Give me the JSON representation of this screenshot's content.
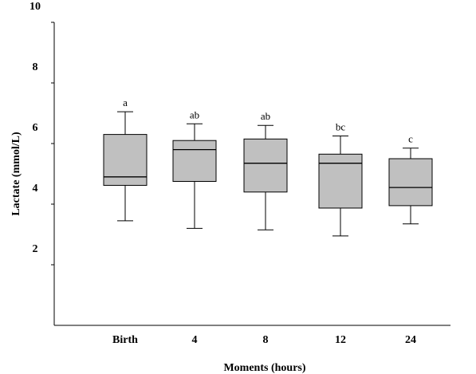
{
  "chart_data": {
    "type": "box",
    "xlabel": "Moments (hours)",
    "ylabel": "Lactate (mmol/L)",
    "ylim": [
      0,
      10
    ],
    "yticks": [
      {
        "value": 2,
        "label": "2"
      },
      {
        "value": 4,
        "label": "4"
      },
      {
        "value": 6,
        "label": "6"
      },
      {
        "value": 8,
        "label": "8"
      },
      {
        "value": 10,
        "label": "10"
      }
    ],
    "categories": [
      "Birth",
      "4",
      "8",
      "12",
      "24"
    ],
    "series": [
      {
        "category": "Birth",
        "whisker_low": 3.45,
        "q1": 4.62,
        "median": 4.9,
        "q3": 6.3,
        "whisker_high": 7.05,
        "label": "a"
      },
      {
        "category": "4",
        "whisker_low": 3.2,
        "q1": 4.75,
        "median": 5.8,
        "q3": 6.1,
        "whisker_high": 6.65,
        "label": "ab"
      },
      {
        "category": "8",
        "whisker_low": 3.15,
        "q1": 4.4,
        "median": 5.35,
        "q3": 6.15,
        "whisker_high": 6.6,
        "label": "ab"
      },
      {
        "category": "12",
        "whisker_low": 2.95,
        "q1": 3.87,
        "median": 5.35,
        "q3": 5.65,
        "whisker_high": 6.25,
        "label": "bc"
      },
      {
        "category": "24",
        "whisker_low": 3.35,
        "q1": 3.95,
        "median": 4.55,
        "q3": 5.5,
        "whisker_high": 5.85,
        "label": "c"
      }
    ],
    "box_color": "#c0c0c0",
    "line_color": "#000000"
  }
}
